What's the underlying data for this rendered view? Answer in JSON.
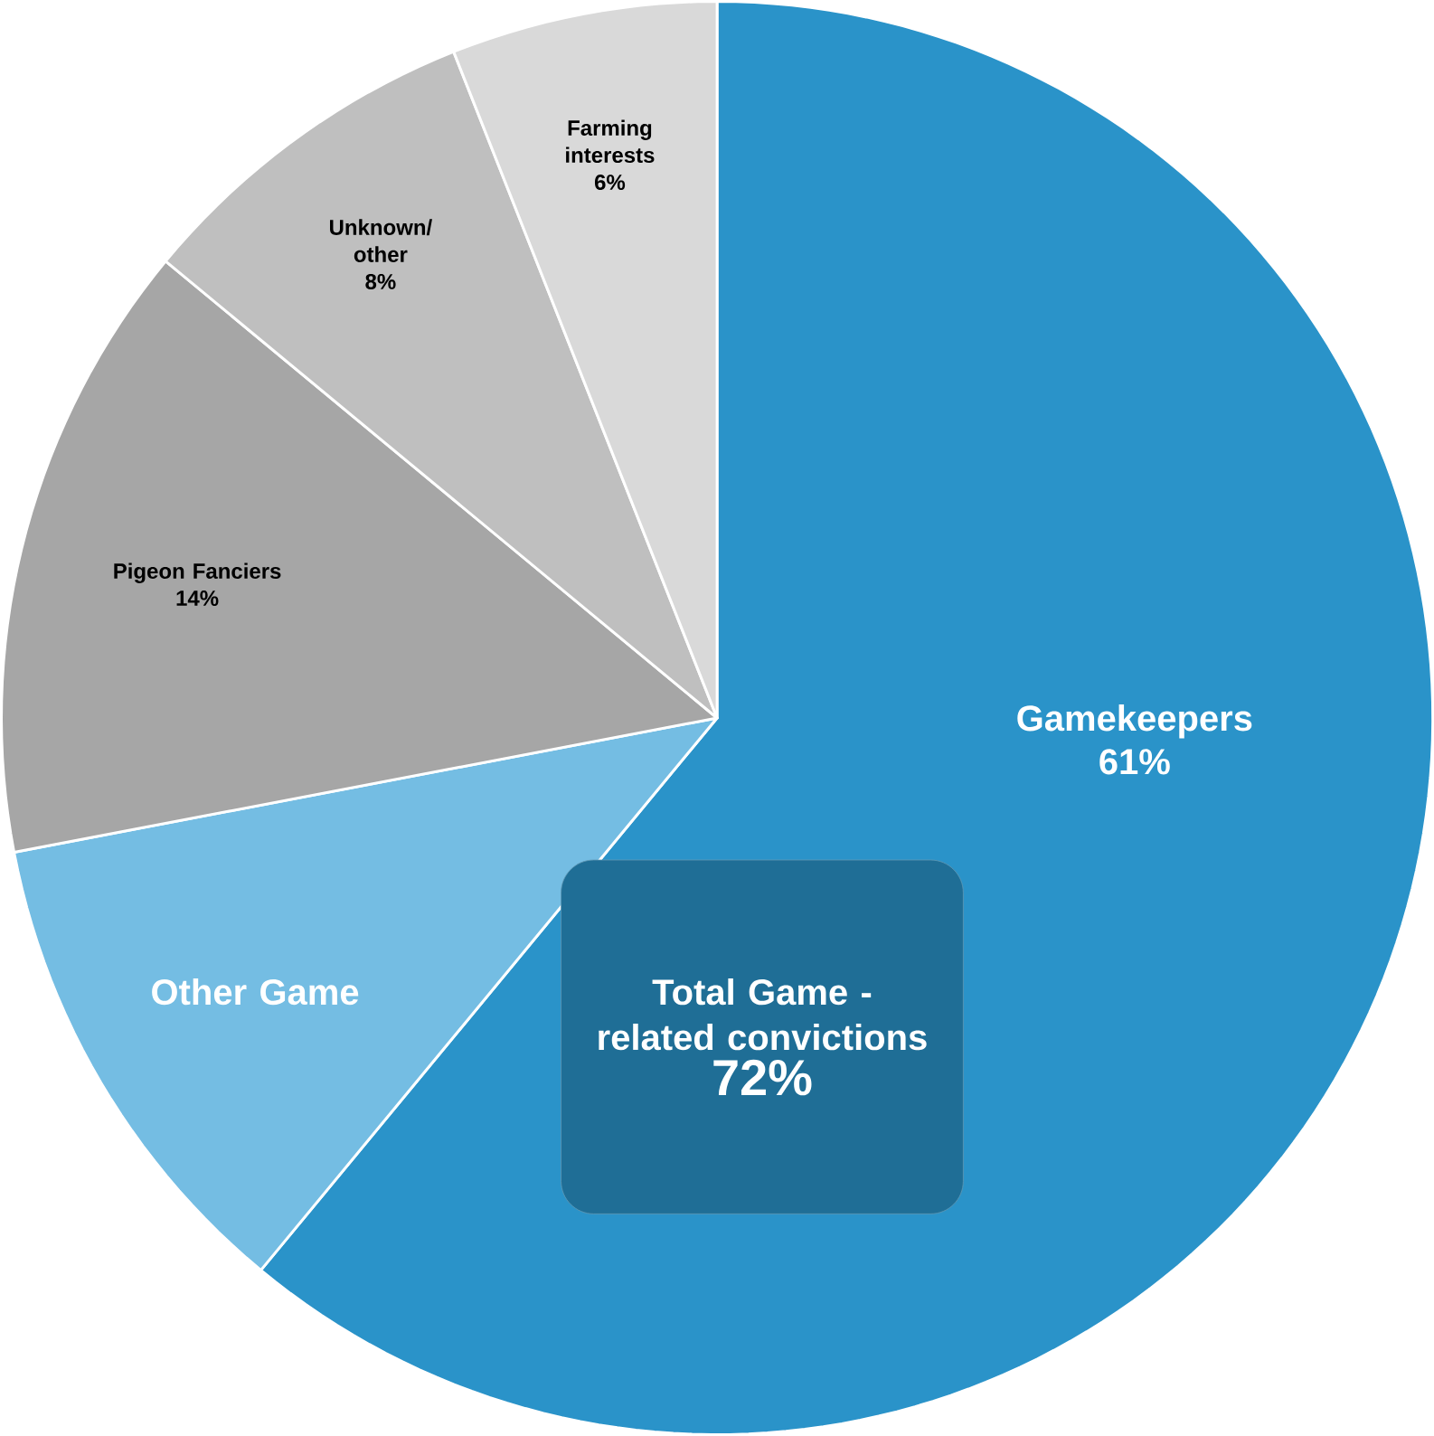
{
  "chart_data": {
    "type": "pie",
    "categories": [
      "Gamekeepers",
      "Other Game",
      "Pigeon Fanciers",
      "Unknown/ other",
      "Farming interests"
    ],
    "values": [
      61,
      11,
      14,
      8,
      6
    ],
    "colors": [
      "#2a93c9",
      "#74bde3",
      "#a6a6a6",
      "#bfbfbf",
      "#d9d9d9"
    ],
    "value_labels": [
      "61%",
      null,
      "14%",
      "8%",
      "6%"
    ],
    "annotations": [
      "Total Game - related convictions",
      "72%"
    ]
  }
}
